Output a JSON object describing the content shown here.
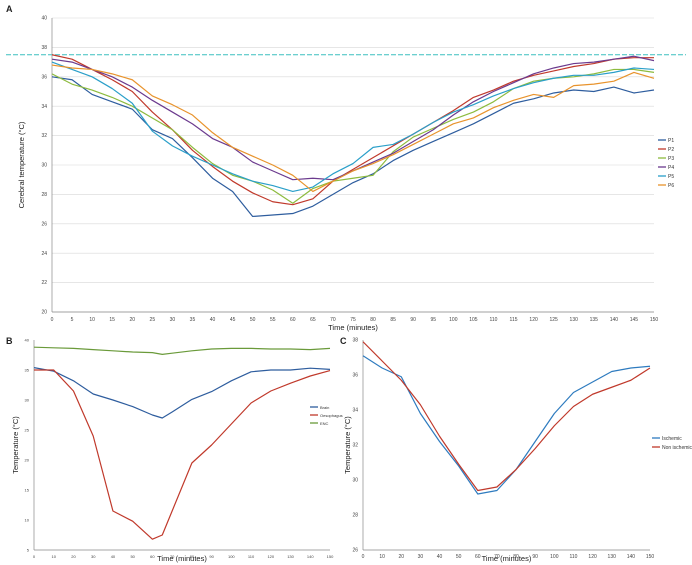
{
  "chart_data": [
    {
      "panel": "A",
      "type": "line",
      "title": "",
      "xlabel": "Time (minutes)",
      "ylabel": "Cerebral temperature (°C)",
      "xlim": [
        0,
        150
      ],
      "ylim": [
        20,
        40
      ],
      "grid": true,
      "legend": "right",
      "x": [
        0,
        5,
        10,
        15,
        20,
        25,
        30,
        35,
        40,
        45,
        50,
        55,
        60,
        65,
        70,
        75,
        80,
        85,
        90,
        95,
        100,
        105,
        110,
        115,
        120,
        125,
        130,
        135,
        140,
        145,
        150
      ],
      "x_ticks": [
        "0",
        "5",
        "10",
        "15",
        "20",
        "25",
        "30",
        "35",
        "40",
        "45",
        "50",
        "55",
        "60",
        "65",
        "70",
        "75",
        "80",
        "85",
        "90",
        "95",
        "100",
        "105",
        "110",
        "115",
        "120",
        "125",
        "130",
        "135",
        "140",
        "145",
        "150"
      ],
      "y_ticks": [
        "20",
        "22",
        "24",
        "26",
        "28",
        "30",
        "32",
        "34",
        "36",
        "38",
        "40"
      ],
      "reference_line": {
        "y": 37.5,
        "color": "#3bbfbf"
      },
      "series": [
        {
          "name": "P1",
          "color": "#2e5d9e",
          "values": [
            36.0,
            35.8,
            34.8,
            34.3,
            33.8,
            32.4,
            31.8,
            30.5,
            29.1,
            28.2,
            26.5,
            26.6,
            26.7,
            27.2,
            28.0,
            28.8,
            29.4,
            30.3,
            31.0,
            31.6,
            32.2,
            32.8,
            33.5,
            34.2,
            34.5,
            34.9,
            35.1,
            35.0,
            35.3,
            34.9,
            35.1
          ]
        },
        {
          "name": "P2",
          "color": "#c0392b",
          "values": [
            37.5,
            37.2,
            36.5,
            35.8,
            35.0,
            33.6,
            32.4,
            31.0,
            29.9,
            28.9,
            28.1,
            27.5,
            27.3,
            27.7,
            28.9,
            29.7,
            30.5,
            31.3,
            32.1,
            32.9,
            33.7,
            34.6,
            35.1,
            35.7,
            36.1,
            36.4,
            36.7,
            36.9,
            37.2,
            37.3,
            37.3
          ]
        },
        {
          "name": "P3",
          "color": "#8dbb3e",
          "values": [
            36.2,
            35.5,
            35.1,
            34.6,
            34.0,
            33.2,
            32.4,
            31.2,
            30.1,
            29.3,
            28.9,
            28.3,
            27.4,
            28.4,
            28.9,
            29.1,
            29.3,
            30.9,
            31.9,
            32.5,
            33.1,
            33.6,
            34.3,
            35.2,
            35.7,
            35.9,
            36.0,
            36.2,
            36.5,
            36.5,
            36.3
          ]
        },
        {
          "name": "P4",
          "color": "#6b3a8e",
          "values": [
            37.2,
            37.0,
            36.5,
            36.0,
            35.3,
            34.4,
            33.6,
            32.8,
            31.8,
            31.2,
            30.2,
            29.6,
            29.0,
            29.1,
            29.0,
            29.6,
            30.2,
            30.8,
            31.6,
            32.4,
            33.4,
            34.3,
            35.0,
            35.6,
            36.2,
            36.6,
            36.9,
            37.0,
            37.2,
            37.4,
            37.1
          ]
        },
        {
          "name": "P5",
          "color": "#2a9fc9",
          "values": [
            37.0,
            36.5,
            36.0,
            35.2,
            34.2,
            32.3,
            31.3,
            30.6,
            30.0,
            29.4,
            28.9,
            28.6,
            28.2,
            28.5,
            29.4,
            30.1,
            31.2,
            31.4,
            32.1,
            32.9,
            33.6,
            34.1,
            34.7,
            35.2,
            35.6,
            35.9,
            36.1,
            36.1,
            36.3,
            36.6,
            36.5
          ]
        },
        {
          "name": "P6",
          "color": "#e8932c",
          "values": [
            36.8,
            36.6,
            36.5,
            36.2,
            35.8,
            34.7,
            34.1,
            33.4,
            32.2,
            31.2,
            30.6,
            30.0,
            29.3,
            28.2,
            28.9,
            29.6,
            30.1,
            30.7,
            31.4,
            32.1,
            32.8,
            33.2,
            33.9,
            34.4,
            34.8,
            34.6,
            35.4,
            35.5,
            35.7,
            36.3,
            35.9
          ]
        }
      ]
    },
    {
      "panel": "B",
      "type": "line",
      "title": "",
      "xlabel": "Time (minutes)",
      "ylabel": "Temperature (°C)",
      "xlim": [
        0,
        150
      ],
      "ylim": [
        5,
        40
      ],
      "grid": false,
      "legend": "right",
      "x": [
        0,
        10,
        20,
        30,
        40,
        50,
        60,
        65,
        70,
        80,
        90,
        100,
        110,
        120,
        130,
        140,
        150
      ],
      "x_ticks": [
        "0",
        "10",
        "20",
        "30",
        "40",
        "50",
        "60",
        "70",
        "80",
        "90",
        "100",
        "110",
        "120",
        "130",
        "140",
        "150"
      ],
      "y_ticks": [
        "5",
        "10",
        "15",
        "20",
        "25",
        "30",
        "35",
        "40"
      ],
      "series": [
        {
          "name": "Brain",
          "color": "#2e5d9e",
          "values": [
            35.4,
            34.8,
            33.2,
            31.0,
            30.0,
            28.9,
            27.5,
            27.0,
            28.0,
            30.1,
            31.4,
            33.2,
            34.7,
            35.0,
            35.0,
            35.3,
            35.1
          ]
        },
        {
          "name": "Oesophagus",
          "color": "#c0392b",
          "values": [
            35.0,
            35.0,
            31.5,
            24.0,
            11.5,
            9.8,
            6.8,
            7.5,
            11.5,
            19.5,
            22.5,
            26.0,
            29.5,
            31.5,
            32.8,
            34.0,
            34.9
          ]
        },
        {
          "name": "ENC",
          "color": "#6a9a3a",
          "values": [
            38.8,
            38.7,
            38.6,
            38.4,
            38.2,
            38.0,
            37.9,
            37.6,
            37.8,
            38.2,
            38.5,
            38.6,
            38.6,
            38.5,
            38.5,
            38.4,
            38.6
          ]
        }
      ]
    },
    {
      "panel": "C",
      "type": "line",
      "title": "",
      "xlabel": "Time (minutes)",
      "ylabel": "Temperature (°C)",
      "xlim": [
        0,
        150
      ],
      "ylim": [
        26,
        38
      ],
      "grid": false,
      "legend": "right",
      "x": [
        0,
        10,
        20,
        30,
        40,
        50,
        60,
        70,
        80,
        90,
        100,
        110,
        120,
        130,
        140,
        150
      ],
      "x_ticks": [
        "0",
        "10",
        "20",
        "30",
        "40",
        "50",
        "60",
        "70",
        "80",
        "90",
        "100",
        "110",
        "120",
        "130",
        "140",
        "150"
      ],
      "y_ticks": [
        "26",
        "28",
        "30",
        "32",
        "34",
        "36",
        "38"
      ],
      "series": [
        {
          "name": "Ischemic",
          "color": "#2e7bbf",
          "values": [
            37.1,
            36.4,
            35.9,
            33.8,
            32.2,
            30.8,
            29.2,
            29.4,
            30.6,
            32.2,
            33.8,
            35.0,
            35.6,
            36.2,
            36.4,
            36.5
          ]
        },
        {
          "name": "Non ischemic",
          "color": "#c0392b",
          "values": [
            37.9,
            36.8,
            35.7,
            34.3,
            32.5,
            30.9,
            29.4,
            29.6,
            30.6,
            31.8,
            33.1,
            34.2,
            34.9,
            35.3,
            35.7,
            36.4
          ]
        }
      ]
    }
  ],
  "panels": {
    "a_label": "A",
    "b_label": "B",
    "c_label": "C"
  }
}
